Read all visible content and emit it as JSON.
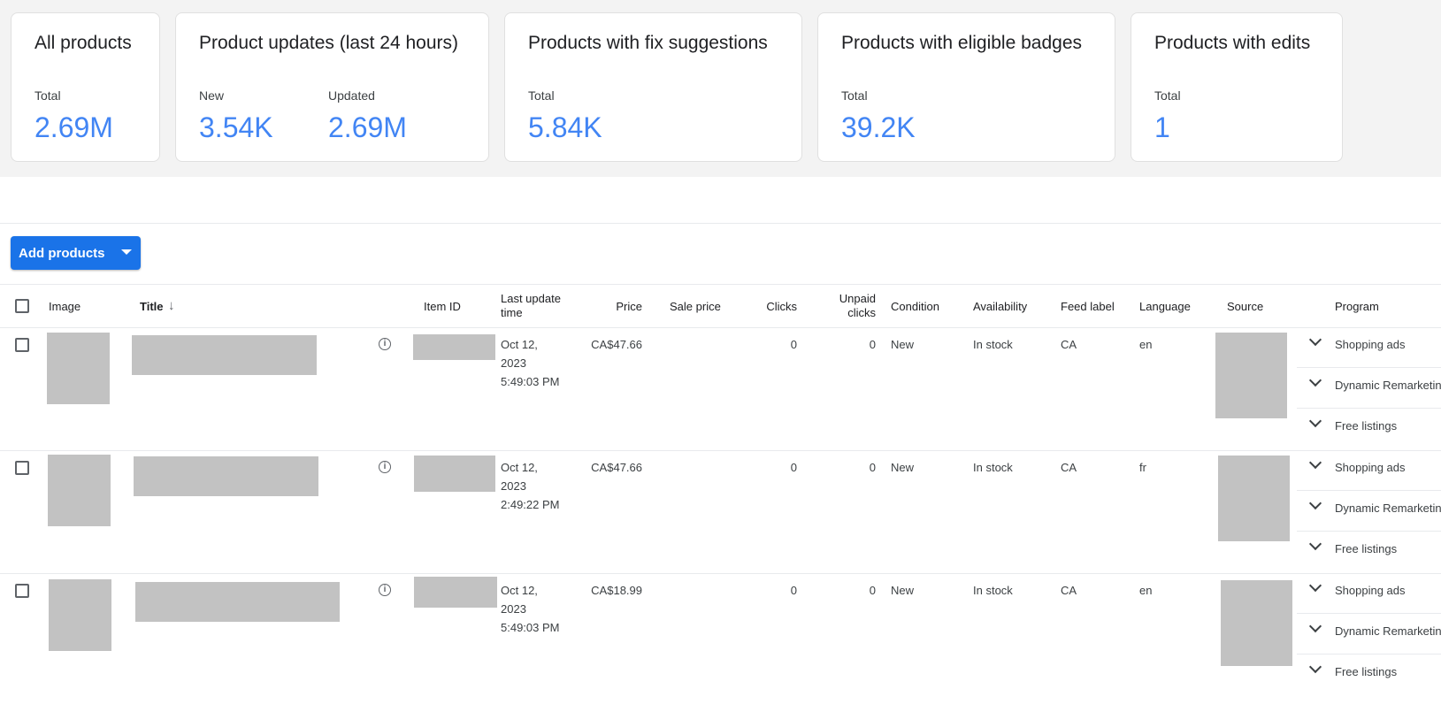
{
  "summary_cards": [
    {
      "title": "All products",
      "metrics": [
        {
          "label": "Total",
          "value": "2.69M"
        }
      ]
    },
    {
      "title": "Product updates (last 24 hours)",
      "metrics": [
        {
          "label": "New",
          "value": "3.54K"
        },
        {
          "label": "Updated",
          "value": "2.69M"
        }
      ]
    },
    {
      "title": "Products with fix suggestions",
      "metrics": [
        {
          "label": "Total",
          "value": "5.84K"
        }
      ]
    },
    {
      "title": "Products with eligible badges",
      "metrics": [
        {
          "label": "Total",
          "value": "39.2K"
        }
      ]
    },
    {
      "title": "Products with edits",
      "metrics": [
        {
          "label": "Total",
          "value": "1"
        }
      ]
    }
  ],
  "toolbar": {
    "add_products_label": "Add products"
  },
  "table": {
    "headers": {
      "image": "Image",
      "title": "Title",
      "item_id": "Item ID",
      "last_update_1": "Last update",
      "last_update_2": "time",
      "price": "Price",
      "sale_price": "Sale price",
      "clicks": "Clicks",
      "unpaid_1": "Unpaid",
      "unpaid_2": "clicks",
      "condition": "Condition",
      "availability": "Availability",
      "feed_label": "Feed label",
      "language": "Language",
      "source": "Source",
      "program": "Program"
    },
    "sort": {
      "column": "Title",
      "direction": "descending"
    },
    "rows": [
      {
        "date": "Oct 12,",
        "year": "2023",
        "time": "5:49:03 PM",
        "price": "CA$47.66",
        "sale_price": "",
        "clicks": "0",
        "unpaid_clicks": "0",
        "condition": "New",
        "availability": "In stock",
        "feed_label": "CA",
        "language": "en",
        "programs": [
          "Shopping ads",
          "Dynamic Remarketing",
          "Free listings"
        ]
      },
      {
        "date": "Oct 12,",
        "year": "2023",
        "time": "2:49:22 PM",
        "price": "CA$47.66",
        "sale_price": "",
        "clicks": "0",
        "unpaid_clicks": "0",
        "condition": "New",
        "availability": "In stock",
        "feed_label": "CA",
        "language": "fr",
        "programs": [
          "Shopping ads",
          "Dynamic Remarketing",
          "Free listings"
        ]
      },
      {
        "date": "Oct 12,",
        "year": "2023",
        "time": "5:49:03 PM",
        "price": "CA$18.99",
        "sale_price": "",
        "clicks": "0",
        "unpaid_clicks": "0",
        "condition": "New",
        "availability": "In stock",
        "feed_label": "CA",
        "language": "en",
        "programs": [
          "Shopping ads",
          "Dynamic Remarketing",
          "Free listings"
        ]
      }
    ]
  },
  "colors": {
    "accent": "#1a73e8",
    "metric": "#4285f4"
  }
}
